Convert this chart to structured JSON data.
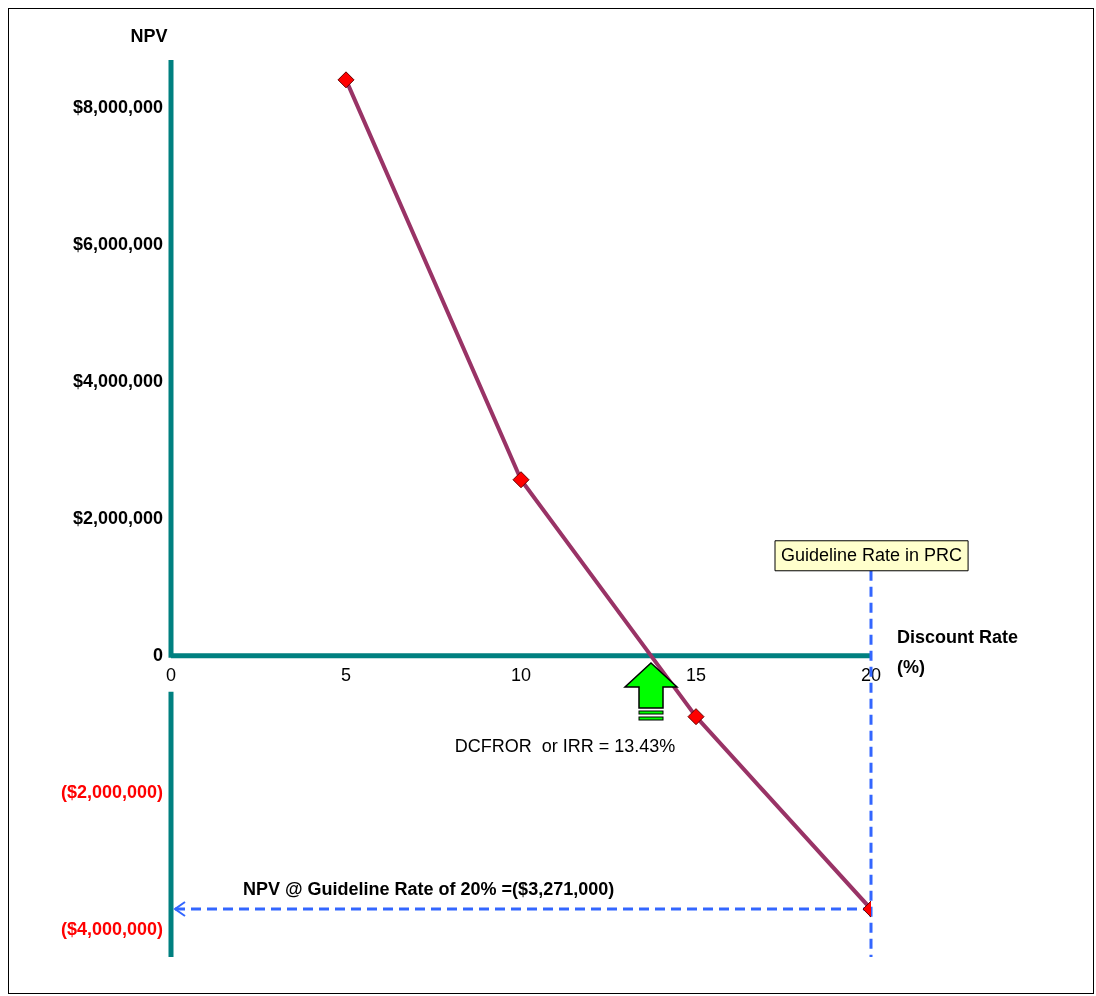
{
  "chart_data": {
    "type": "line",
    "ylabel": "NPV",
    "xlabel": "Discount Rate (%)",
    "x": [
      5,
      10,
      15,
      20
    ],
    "series": [
      {
        "color": "#993366",
        "values": [
          8410000,
          2570000,
          -890000,
          -3700000
        ]
      }
    ],
    "marker": "diamond",
    "line_style": "solid",
    "xlim": [
      0,
      20
    ],
    "xticks": [
      0,
      5,
      10,
      15,
      20
    ],
    "ylim": [
      -4400000,
      8700000
    ],
    "yticks": [
      {
        "value": -4000000,
        "label": "($4,000,000)"
      },
      {
        "value": -2000000,
        "label": "($2,000,000)"
      },
      0,
      {
        "value": 2000000,
        "label": "$2,000,000"
      },
      {
        "value": 4000000,
        "label": "$4,000,000"
      },
      {
        "value": 6000000,
        "label": "$6,000,000"
      },
      {
        "value": 8000000,
        "label": "$8,000,000"
      }
    ],
    "ref_lines": [
      {
        "axis": "x",
        "value": 20,
        "label": "Guideline Rate in PRC",
        "color": "#3366ff",
        "line_style": "dashed"
      },
      {
        "axis": "y",
        "value": -3700000,
        "label": "NPV @ Guideline Rate of 20% =($3,271,000)",
        "color": "#3366ff",
        "line_style": "dashed"
      }
    ],
    "annotations": [
      "DCFROR  or IRR = 13.43%"
    ],
    "grid": false,
    "legend": false
  }
}
